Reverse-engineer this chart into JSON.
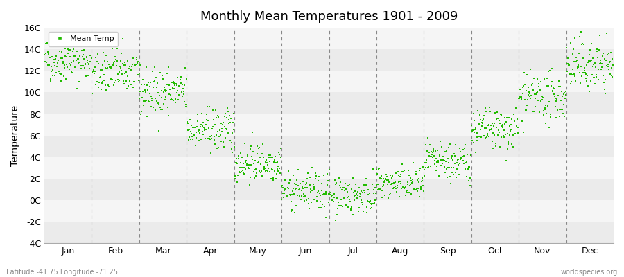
{
  "title": "Monthly Mean Temperatures 1901 - 2009",
  "ylabel": "Temperature",
  "subtitle_left": "Latitude -41.75 Longitude -71.25",
  "subtitle_right": "worldspecies.org",
  "legend_label": "Mean Temp",
  "marker_color": "#22bb00",
  "marker_size": 3,
  "ylim": [
    -4,
    16
  ],
  "yticks": [
    -4,
    -2,
    0,
    2,
    4,
    6,
    8,
    10,
    12,
    14,
    16
  ],
  "ytick_labels": [
    "-4C",
    "-2C",
    "0C",
    "2C",
    "4C",
    "6C",
    "8C",
    "10C",
    "12C",
    "14C",
    "16C"
  ],
  "months": [
    "Jan",
    "Feb",
    "Mar",
    "Apr",
    "May",
    "Jun",
    "Jul",
    "Aug",
    "Sep",
    "Oct",
    "Nov",
    "Dec"
  ],
  "band_colors": [
    "#ebebeb",
    "#f5f5f5"
  ],
  "background_color": "#ffffff",
  "num_years": 109,
  "seed": 42,
  "monthly_mean": [
    13.0,
    12.0,
    10.0,
    6.5,
    3.5,
    0.8,
    0.5,
    1.5,
    3.5,
    6.5,
    9.5,
    12.5
  ],
  "monthly_std": [
    1.0,
    1.1,
    1.1,
    1.0,
    0.9,
    0.9,
    0.9,
    0.8,
    0.9,
    1.0,
    1.1,
    1.2
  ]
}
